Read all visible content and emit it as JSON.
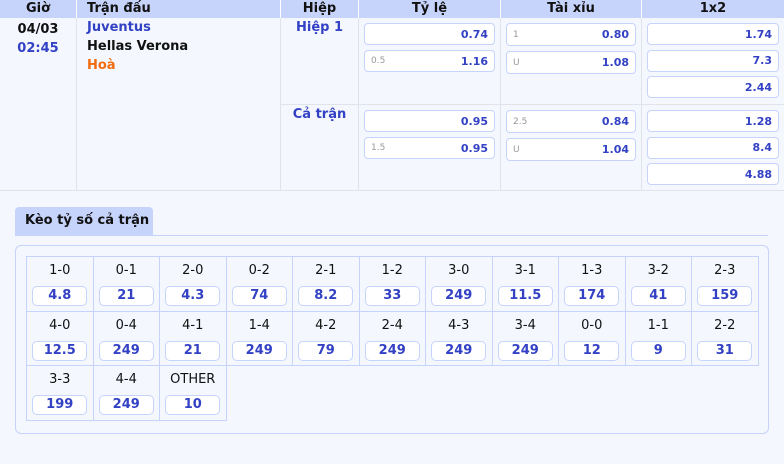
{
  "header": {
    "time": "Giờ",
    "match": "Trận đấu",
    "half": "Hiệp",
    "handicap": "Tỷ lệ",
    "overunder": "Tài xỉu",
    "x12": "1x2"
  },
  "match": {
    "date": "04/03",
    "time": "02:45",
    "home": "Juventus",
    "away": "Hellas Verona",
    "draw": "Hoà"
  },
  "periods": [
    {
      "label": "Hiệp 1",
      "handicap": [
        {
          "line": "",
          "odds": "0.74"
        },
        {
          "line": "0.5",
          "odds": "1.16"
        }
      ],
      "overunder": [
        {
          "line": "1",
          "odds": "0.80"
        },
        {
          "line": "U",
          "odds": "1.08"
        }
      ],
      "x12": [
        "1.74",
        "7.3",
        "2.44"
      ]
    },
    {
      "label": "Cả trận",
      "handicap": [
        {
          "line": "",
          "odds": "0.95"
        },
        {
          "line": "1.5",
          "odds": "0.95"
        }
      ],
      "overunder": [
        {
          "line": "2.5",
          "odds": "0.84"
        },
        {
          "line": "U",
          "odds": "1.04"
        }
      ],
      "x12": [
        "1.28",
        "8.4",
        "4.88"
      ]
    }
  ],
  "correct_score": {
    "tab": "Kèo tỷ số cả trận",
    "items": [
      {
        "s": "1-0",
        "o": "4.8"
      },
      {
        "s": "0-1",
        "o": "21"
      },
      {
        "s": "2-0",
        "o": "4.3"
      },
      {
        "s": "0-2",
        "o": "74"
      },
      {
        "s": "2-1",
        "o": "8.2"
      },
      {
        "s": "1-2",
        "o": "33"
      },
      {
        "s": "3-0",
        "o": "249"
      },
      {
        "s": "3-1",
        "o": "11.5"
      },
      {
        "s": "1-3",
        "o": "174"
      },
      {
        "s": "3-2",
        "o": "41"
      },
      {
        "s": "2-3",
        "o": "159"
      },
      {
        "s": "4-0",
        "o": "12.5"
      },
      {
        "s": "0-4",
        "o": "249"
      },
      {
        "s": "4-1",
        "o": "21"
      },
      {
        "s": "1-4",
        "o": "249"
      },
      {
        "s": "4-2",
        "o": "79"
      },
      {
        "s": "2-4",
        "o": "249"
      },
      {
        "s": "4-3",
        "o": "249"
      },
      {
        "s": "3-4",
        "o": "249"
      },
      {
        "s": "0-0",
        "o": "12"
      },
      {
        "s": "1-1",
        "o": "9"
      },
      {
        "s": "2-2",
        "o": "31"
      },
      {
        "s": "3-3",
        "o": "199"
      },
      {
        "s": "4-4",
        "o": "249"
      },
      {
        "s": "OTHER",
        "o": "10"
      }
    ]
  }
}
